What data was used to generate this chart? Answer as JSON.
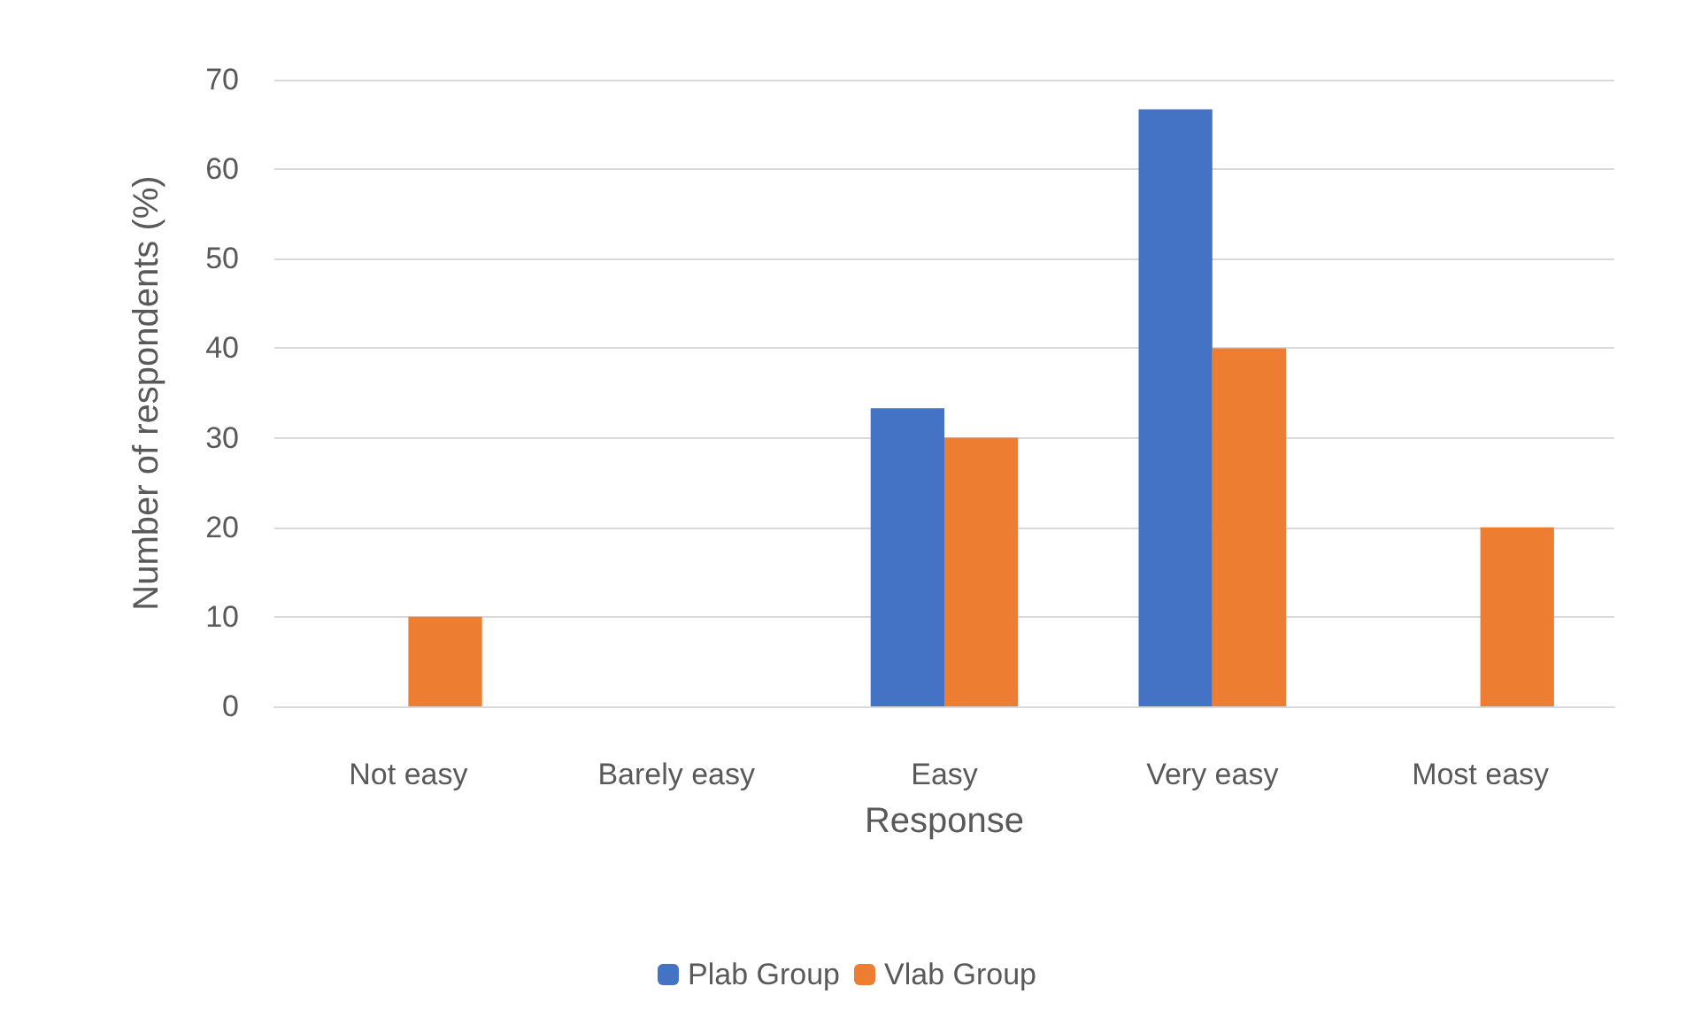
{
  "chart_data": {
    "type": "bar",
    "xlabel": "Response",
    "ylabel": "Number of respondents (%)",
    "categories": [
      "Not easy",
      "Barely easy",
      "Easy",
      "Very easy",
      "Most easy"
    ],
    "series": [
      {
        "name": "Plab Group",
        "color": "#4472c4",
        "values": [
          0,
          0,
          33.3,
          66.7,
          0
        ]
      },
      {
        "name": "Vlab Group",
        "color": "#ed7d31",
        "values": [
          10,
          0,
          30,
          40,
          20
        ]
      }
    ],
    "ylim": [
      0,
      70
    ],
    "yticks": [
      0,
      10,
      20,
      30,
      40,
      50,
      60,
      70
    ],
    "grid": "y",
    "legend": "bottom"
  }
}
